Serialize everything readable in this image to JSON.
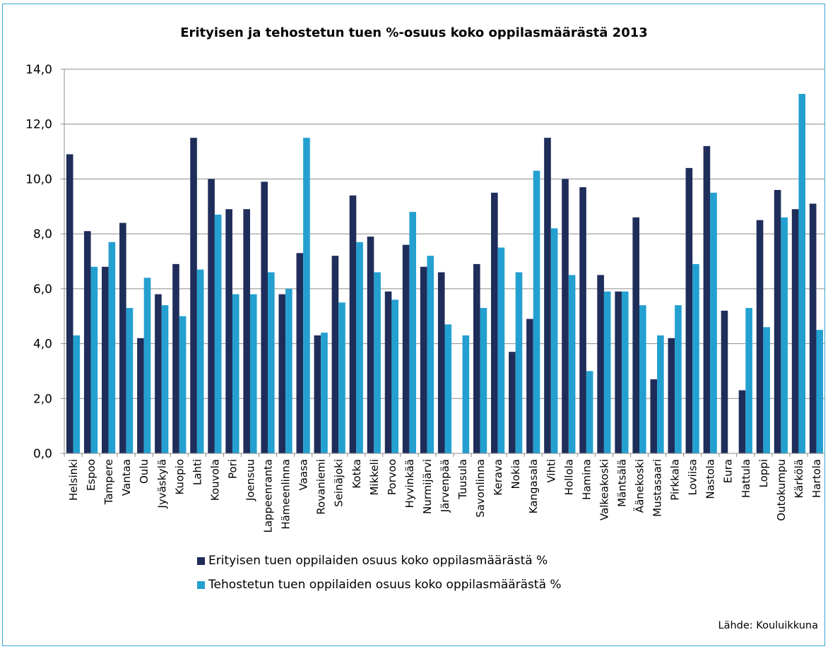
{
  "chart_data": {
    "type": "bar",
    "title": "Erityisen ja tehostetun tuen %-osuus koko oppilasmäärästä 2013",
    "categories": [
      "Helsinki",
      "Espoo",
      "Tampere",
      "Vantaa",
      "Oulu",
      "Jyväskylä",
      "Kuopio",
      "Lahti",
      "Kouvola",
      "Pori",
      "Joensuu",
      "Lappeenranta",
      "Hämeenlinna",
      "Vaasa",
      "Rovaniemi",
      "Seinäjoki",
      "Kotka",
      "Mikkeli",
      "Porvoo",
      "Hyvinkää",
      "Nurmijärvi",
      "Järvenpää",
      "Tuusula",
      "Savonlinna",
      "Kerava",
      "Nokia",
      "Kangasala",
      "Vihti",
      "Hollola",
      "Hamina",
      "Valkeakoski",
      "Mäntsälä",
      "Äänekoski",
      "Mustasaari",
      "Pirkkala",
      "Loviisa",
      "Nastola",
      "Eura",
      "Hattula",
      "Loppi",
      "Outokumpu",
      "Kärkölä",
      "Hartola"
    ],
    "series": [
      {
        "name": "Erityisen tuen oppilaiden osuus koko oppilasmäärästä %",
        "color": "#1f2d5a",
        "values": [
          10.9,
          8.1,
          6.8,
          8.4,
          4.2,
          5.8,
          6.9,
          11.5,
          10.0,
          8.9,
          8.9,
          9.9,
          5.8,
          7.3,
          4.3,
          7.2,
          9.4,
          7.9,
          5.9,
          7.6,
          6.8,
          6.6,
          0,
          6.9,
          9.5,
          3.7,
          4.9,
          11.5,
          10.0,
          9.7,
          6.5,
          5.9,
          8.6,
          2.7,
          4.2,
          10.4,
          11.2,
          5.2,
          2.3,
          8.5,
          9.6,
          8.9,
          9.1
        ]
      },
      {
        "name": "Tehostetun tuen oppilaiden osuus koko oppilasmäärästä %",
        "color": "#23a0d0",
        "values": [
          4.3,
          6.8,
          7.7,
          5.3,
          6.4,
          5.4,
          5.0,
          6.7,
          8.7,
          5.8,
          5.8,
          6.6,
          6.0,
          11.5,
          4.4,
          5.5,
          7.7,
          6.6,
          5.6,
          8.8,
          7.2,
          4.7,
          4.3,
          5.3,
          7.5,
          6.6,
          10.3,
          8.2,
          6.5,
          3.0,
          5.9,
          5.9,
          5.4,
          4.3,
          5.4,
          6.9,
          9.5,
          0,
          5.3,
          4.6,
          8.6,
          13.1,
          4.5
        ]
      }
    ],
    "ylim": [
      0,
      14
    ],
    "yticks": [
      "0,0",
      "2,0",
      "4,0",
      "6,0",
      "8,0",
      "10,0",
      "12,0",
      "14,0"
    ],
    "grid": true,
    "legend_position": "bottom"
  },
  "source_note": "Lähde: Kouluikkuna"
}
